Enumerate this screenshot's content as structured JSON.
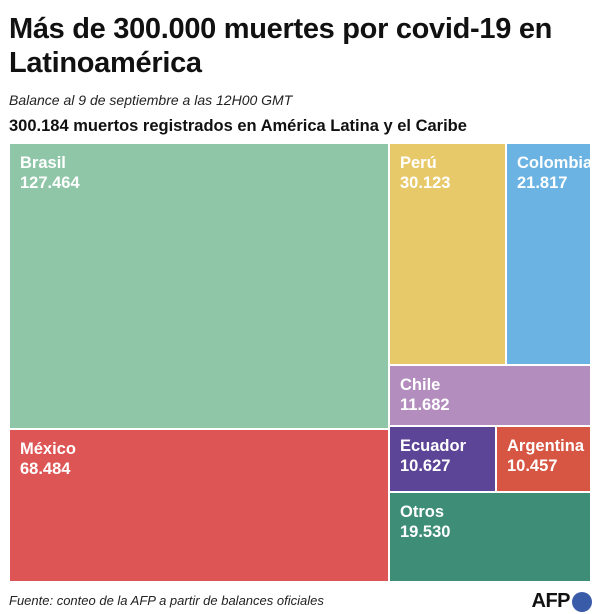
{
  "title": "Más de 300.000 muertes por covid-19 en Latinoamérica",
  "subtitle": "Balance al 9 de septiembre a las 12H00 GMT",
  "total_label": "300.184 muertos registrados en América Latina y el Caribe",
  "source": "Fuente: conteo de la AFP a partir de balances oficiales",
  "logo": {
    "text": "AFP",
    "color": "#3a5ba8"
  },
  "chart_data": {
    "type": "treemap",
    "title": "Más de 300.000 muertes por covid-19 en Latinoamérica",
    "total": 300184,
    "items": [
      {
        "name": "Brasil",
        "value": 127464,
        "label": "127.464",
        "color": "#8fc6a8"
      },
      {
        "name": "México",
        "value": 68484,
        "label": "68.484",
        "color": "#de5555"
      },
      {
        "name": "Perú",
        "value": 30123,
        "label": "30.123",
        "color": "#e8c96a"
      },
      {
        "name": "Colombia",
        "value": 21817,
        "label": "21.817",
        "color": "#6bb3e2"
      },
      {
        "name": "Chile",
        "value": 11682,
        "label": "11.682",
        "color": "#b28dbd"
      },
      {
        "name": "Ecuador",
        "value": 10627,
        "label": "10.627",
        "color": "#5c4596"
      },
      {
        "name": "Argentina",
        "value": 10457,
        "label": "10.457",
        "color": "#d65543"
      },
      {
        "name": "Otros",
        "value": 19530,
        "label": "19.530",
        "color": "#3d8d77"
      }
    ]
  }
}
